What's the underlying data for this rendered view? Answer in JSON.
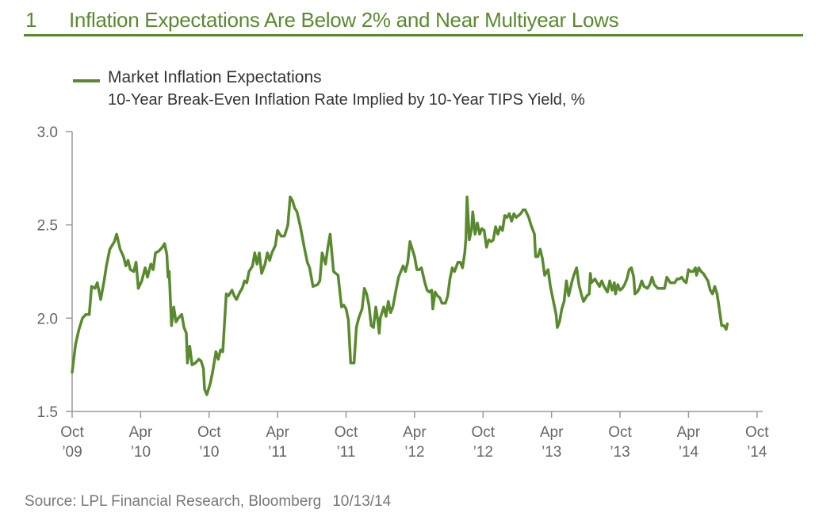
{
  "figure": {
    "number": "1",
    "title": "Inflation Expectations Are Below 2% and Near Multiyear Lows"
  },
  "source": {
    "text": "Source: LPL Financial Research, Bloomberg",
    "date": "10/13/14"
  },
  "chart_data": {
    "type": "line",
    "title": "Inflation Expectations Are Below 2% and Near Multiyear Lows",
    "subtitle": "10-Year Break-Even Inflation Rate Implied by 10-Year TIPS Yield, %",
    "legend": "top-left",
    "xlabel": "",
    "ylabel": "",
    "ylim": [
      1.5,
      3.0
    ],
    "yticks": [
      1.5,
      2.0,
      2.5,
      3.0
    ],
    "ytick_labels": [
      "1.5",
      "2.0",
      "2.5",
      "3.0"
    ],
    "xlim": [
      0,
      60.5
    ],
    "xticks": [
      0,
      6,
      12,
      18,
      24,
      30,
      36,
      42,
      48,
      54,
      60
    ],
    "xtick_labels": [
      [
        "Oct",
        "’09"
      ],
      [
        "Apr",
        "’10"
      ],
      [
        "Oct",
        "’10"
      ],
      [
        "Apr",
        "’11"
      ],
      [
        "Oct",
        "’11"
      ],
      [
        "Apr",
        "’12"
      ],
      [
        "Oct",
        "’12"
      ],
      [
        "Apr",
        "’13"
      ],
      [
        "Oct",
        "’13"
      ],
      [
        "Apr",
        "’14"
      ],
      [
        "Oct",
        "’14"
      ]
    ],
    "series": [
      {
        "name": "Market Inflation Expectations",
        "color": "#5a8a2e",
        "points": [
          [
            0.0,
            1.71
          ],
          [
            0.3,
            1.86
          ],
          [
            0.6,
            1.94
          ],
          [
            0.9,
            2.0
          ],
          [
            1.2,
            2.02
          ],
          [
            1.5,
            2.02
          ],
          [
            1.7,
            2.17
          ],
          [
            2.0,
            2.16
          ],
          [
            2.2,
            2.19
          ],
          [
            2.5,
            2.1
          ],
          [
            2.8,
            2.2
          ],
          [
            3.0,
            2.28
          ],
          [
            3.3,
            2.37
          ],
          [
            3.7,
            2.41
          ],
          [
            3.9,
            2.45
          ],
          [
            4.2,
            2.37
          ],
          [
            4.5,
            2.33
          ],
          [
            4.7,
            2.28
          ],
          [
            4.9,
            2.31
          ],
          [
            5.1,
            2.26
          ],
          [
            5.4,
            2.25
          ],
          [
            5.6,
            2.3
          ],
          [
            5.8,
            2.16
          ],
          [
            6.1,
            2.2
          ],
          [
            6.4,
            2.27
          ],
          [
            6.6,
            2.22
          ],
          [
            6.9,
            2.29
          ],
          [
            7.1,
            2.26
          ],
          [
            7.3,
            2.35
          ],
          [
            7.6,
            2.36
          ],
          [
            7.9,
            2.38
          ],
          [
            8.1,
            2.4
          ],
          [
            8.3,
            2.34
          ],
          [
            8.4,
            2.22
          ],
          [
            8.5,
            2.25
          ],
          [
            8.7,
            1.96
          ],
          [
            8.9,
            2.06
          ],
          [
            9.1,
            1.98
          ],
          [
            9.3,
            2.0
          ],
          [
            9.6,
            2.02
          ],
          [
            9.8,
            1.95
          ],
          [
            10.0,
            1.92
          ],
          [
            10.1,
            1.76
          ],
          [
            10.3,
            1.85
          ],
          [
            10.5,
            1.75
          ],
          [
            10.8,
            1.76
          ],
          [
            11.1,
            1.78
          ],
          [
            11.3,
            1.77
          ],
          [
            11.5,
            1.73
          ],
          [
            11.6,
            1.62
          ],
          [
            11.8,
            1.59
          ],
          [
            12.1,
            1.65
          ],
          [
            12.3,
            1.71
          ],
          [
            12.6,
            1.82
          ],
          [
            12.8,
            1.78
          ],
          [
            13.0,
            1.83
          ],
          [
            13.2,
            1.82
          ],
          [
            13.5,
            2.13
          ],
          [
            13.7,
            2.12
          ],
          [
            14.0,
            2.15
          ],
          [
            14.2,
            2.12
          ],
          [
            14.4,
            2.1
          ],
          [
            14.7,
            2.14
          ],
          [
            14.9,
            2.16
          ],
          [
            15.1,
            2.2
          ],
          [
            15.3,
            2.19
          ],
          [
            15.5,
            2.25
          ],
          [
            15.8,
            2.28
          ],
          [
            16.0,
            2.35
          ],
          [
            16.2,
            2.29
          ],
          [
            16.4,
            2.35
          ],
          [
            16.6,
            2.24
          ],
          [
            16.9,
            2.29
          ],
          [
            17.1,
            2.35
          ],
          [
            17.3,
            2.31
          ],
          [
            17.5,
            2.35
          ],
          [
            17.8,
            2.39
          ],
          [
            18.0,
            2.47
          ],
          [
            18.3,
            2.44
          ],
          [
            18.6,
            2.44
          ],
          [
            18.9,
            2.5
          ],
          [
            19.1,
            2.65
          ],
          [
            19.3,
            2.63
          ],
          [
            19.5,
            2.59
          ],
          [
            19.7,
            2.57
          ],
          [
            20.0,
            2.49
          ],
          [
            20.3,
            2.39
          ],
          [
            20.6,
            2.3
          ],
          [
            20.8,
            2.27
          ],
          [
            21.1,
            2.17
          ],
          [
            21.5,
            2.18
          ],
          [
            21.7,
            2.2
          ],
          [
            21.9,
            2.35
          ],
          [
            22.2,
            2.29
          ],
          [
            22.4,
            2.38
          ],
          [
            22.6,
            2.45
          ],
          [
            22.9,
            2.25
          ],
          [
            23.3,
            2.23
          ],
          [
            23.6,
            2.06
          ],
          [
            23.8,
            2.07
          ],
          [
            24.0,
            2.05
          ],
          [
            24.2,
            1.99
          ],
          [
            24.4,
            1.76
          ],
          [
            24.7,
            1.76
          ],
          [
            24.9,
            1.95
          ],
          [
            25.1,
            2.0
          ],
          [
            25.4,
            2.05
          ],
          [
            25.6,
            2.16
          ],
          [
            25.8,
            2.13
          ],
          [
            26.0,
            2.07
          ],
          [
            26.2,
            1.96
          ],
          [
            26.4,
            1.95
          ],
          [
            26.6,
            2.06
          ],
          [
            26.8,
            1.98
          ],
          [
            26.9,
            1.92
          ],
          [
            27.0,
            2.0
          ],
          [
            27.3,
            2.06
          ],
          [
            27.5,
            2.01
          ],
          [
            27.7,
            2.09
          ],
          [
            27.9,
            2.03
          ],
          [
            28.1,
            2.06
          ],
          [
            28.4,
            2.16
          ],
          [
            28.6,
            2.22
          ],
          [
            28.8,
            2.25
          ],
          [
            29.0,
            2.28
          ],
          [
            29.2,
            2.25
          ],
          [
            29.4,
            2.3
          ],
          [
            29.6,
            2.41
          ],
          [
            29.8,
            2.37
          ],
          [
            30.0,
            2.33
          ],
          [
            30.2,
            2.26
          ],
          [
            30.4,
            2.26
          ],
          [
            30.6,
            2.27
          ],
          [
            30.9,
            2.19
          ],
          [
            31.1,
            2.15
          ],
          [
            31.3,
            2.14
          ],
          [
            31.5,
            2.15
          ],
          [
            31.6,
            2.05
          ],
          [
            31.8,
            2.14
          ],
          [
            32.0,
            2.12
          ],
          [
            32.2,
            2.11
          ],
          [
            32.4,
            2.08
          ],
          [
            32.7,
            2.08
          ],
          [
            32.9,
            2.12
          ],
          [
            33.1,
            2.21
          ],
          [
            33.3,
            2.27
          ],
          [
            33.5,
            2.25
          ],
          [
            33.8,
            2.3
          ],
          [
            34.0,
            2.3
          ],
          [
            34.2,
            2.27
          ],
          [
            34.4,
            2.35
          ],
          [
            34.5,
            2.43
          ],
          [
            34.6,
            2.65
          ],
          [
            34.8,
            2.42
          ],
          [
            35.0,
            2.48
          ],
          [
            35.1,
            2.57
          ],
          [
            35.3,
            2.45
          ],
          [
            35.5,
            2.51
          ],
          [
            35.7,
            2.45
          ],
          [
            35.9,
            2.48
          ],
          [
            36.1,
            2.47
          ],
          [
            36.3,
            2.38
          ],
          [
            36.5,
            2.42
          ],
          [
            36.7,
            2.41
          ],
          [
            36.9,
            2.42
          ],
          [
            37.1,
            2.49
          ],
          [
            37.3,
            2.45
          ],
          [
            37.5,
            2.49
          ],
          [
            37.7,
            2.47
          ],
          [
            37.9,
            2.55
          ],
          [
            38.1,
            2.54
          ],
          [
            38.3,
            2.56
          ],
          [
            38.5,
            2.52
          ],
          [
            38.7,
            2.56
          ],
          [
            38.9,
            2.54
          ],
          [
            39.1,
            2.55
          ],
          [
            39.3,
            2.56
          ],
          [
            39.5,
            2.58
          ],
          [
            39.7,
            2.58
          ],
          [
            40.0,
            2.54
          ],
          [
            40.2,
            2.5
          ],
          [
            40.5,
            2.45
          ],
          [
            40.6,
            2.33
          ],
          [
            40.8,
            2.33
          ],
          [
            41.0,
            2.37
          ],
          [
            41.2,
            2.32
          ],
          [
            41.4,
            2.23
          ],
          [
            41.7,
            2.26
          ],
          [
            41.9,
            2.17
          ],
          [
            42.2,
            2.08
          ],
          [
            42.4,
            2.02
          ],
          [
            42.5,
            1.95
          ],
          [
            42.7,
            1.98
          ],
          [
            42.9,
            2.05
          ],
          [
            43.1,
            2.09
          ],
          [
            43.3,
            2.2
          ],
          [
            43.5,
            2.12
          ],
          [
            43.8,
            2.2
          ],
          [
            44.0,
            2.24
          ],
          [
            44.2,
            2.27
          ],
          [
            44.4,
            2.18
          ],
          [
            44.6,
            2.13
          ],
          [
            44.8,
            2.09
          ],
          [
            45.1,
            2.12
          ],
          [
            45.3,
            2.13
          ],
          [
            45.4,
            2.24
          ],
          [
            45.5,
            2.19
          ],
          [
            45.8,
            2.21
          ],
          [
            46.0,
            2.19
          ],
          [
            46.2,
            2.17
          ],
          [
            46.4,
            2.2
          ],
          [
            46.6,
            2.17
          ],
          [
            46.9,
            2.14
          ],
          [
            47.1,
            2.2
          ],
          [
            47.3,
            2.15
          ],
          [
            47.5,
            2.19
          ],
          [
            47.6,
            2.13
          ],
          [
            47.8,
            2.18
          ],
          [
            48.0,
            2.15
          ],
          [
            48.2,
            2.16
          ],
          [
            48.4,
            2.18
          ],
          [
            48.6,
            2.21
          ],
          [
            48.8,
            2.26
          ],
          [
            49.0,
            2.27
          ],
          [
            49.2,
            2.22
          ],
          [
            49.3,
            2.13
          ],
          [
            49.5,
            2.14
          ],
          [
            49.7,
            2.16
          ],
          [
            49.9,
            2.2
          ],
          [
            50.1,
            2.17
          ],
          [
            50.4,
            2.16
          ],
          [
            50.6,
            2.18
          ],
          [
            50.8,
            2.22
          ],
          [
            51.0,
            2.18
          ],
          [
            51.3,
            2.16
          ],
          [
            51.5,
            2.16
          ],
          [
            51.7,
            2.16
          ],
          [
            51.9,
            2.16
          ],
          [
            52.1,
            2.22
          ],
          [
            52.4,
            2.19
          ],
          [
            52.6,
            2.19
          ],
          [
            52.8,
            2.19
          ],
          [
            53.0,
            2.21
          ],
          [
            53.2,
            2.21
          ],
          [
            53.4,
            2.22
          ],
          [
            53.6,
            2.2
          ],
          [
            53.8,
            2.19
          ],
          [
            54.0,
            2.26
          ],
          [
            54.2,
            2.25
          ],
          [
            54.4,
            2.25
          ],
          [
            54.6,
            2.27
          ],
          [
            54.7,
            2.23
          ],
          [
            54.9,
            2.27
          ],
          [
            55.1,
            2.25
          ],
          [
            55.3,
            2.24
          ],
          [
            55.5,
            2.22
          ],
          [
            55.7,
            2.2
          ],
          [
            55.9,
            2.15
          ],
          [
            56.1,
            2.13
          ],
          [
            56.3,
            2.17
          ],
          [
            56.5,
            2.13
          ],
          [
            56.7,
            2.05
          ],
          [
            56.9,
            1.96
          ],
          [
            57.1,
            1.96
          ],
          [
            57.3,
            1.94
          ],
          [
            57.4,
            1.97
          ]
        ]
      }
    ]
  }
}
